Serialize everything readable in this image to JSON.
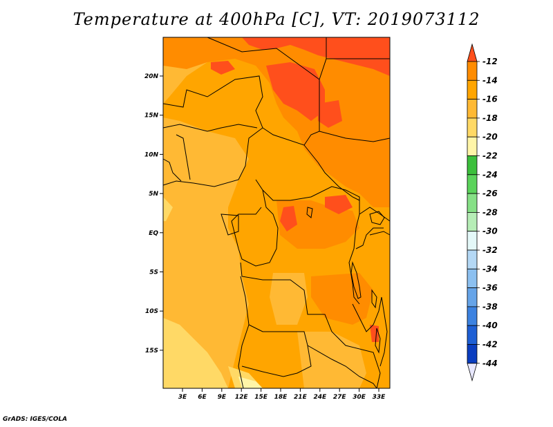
{
  "title": "Temperature at 400hPa [C], VT: 2019073112",
  "credit": "GrADS: IGES/COLA",
  "map": {
    "units": "C",
    "x_ticks": [
      "3E",
      "6E",
      "9E",
      "12E",
      "15E",
      "18E",
      "21E",
      "24E",
      "27E",
      "30E",
      "33E"
    ],
    "y_ticks": [
      "20N",
      "15N",
      "10N",
      "5N",
      "EQ",
      "5S",
      "10S",
      "15S"
    ]
  },
  "legend": {
    "labels": [
      "-12",
      "-14",
      "-16",
      "-18",
      "-20",
      "-22",
      "-24",
      "-26",
      "-28",
      "-30",
      "-32",
      "-34",
      "-36",
      "-38",
      "-40",
      "-42",
      "-44"
    ],
    "colors": [
      "#ff4f1c",
      "#ff8c00",
      "#ffa500",
      "#ffb934",
      "#ffd966",
      "#fff5a8",
      "#3cbf3c",
      "#5bd35b",
      "#86e086",
      "#b6edb6",
      "#e4f8f8",
      "#b4d8f5",
      "#8cc0f0",
      "#66a4e8",
      "#3c82e0",
      "#1e5fd4",
      "#0a3dbf",
      "#0a1a80",
      "#e8e8ff"
    ]
  }
}
